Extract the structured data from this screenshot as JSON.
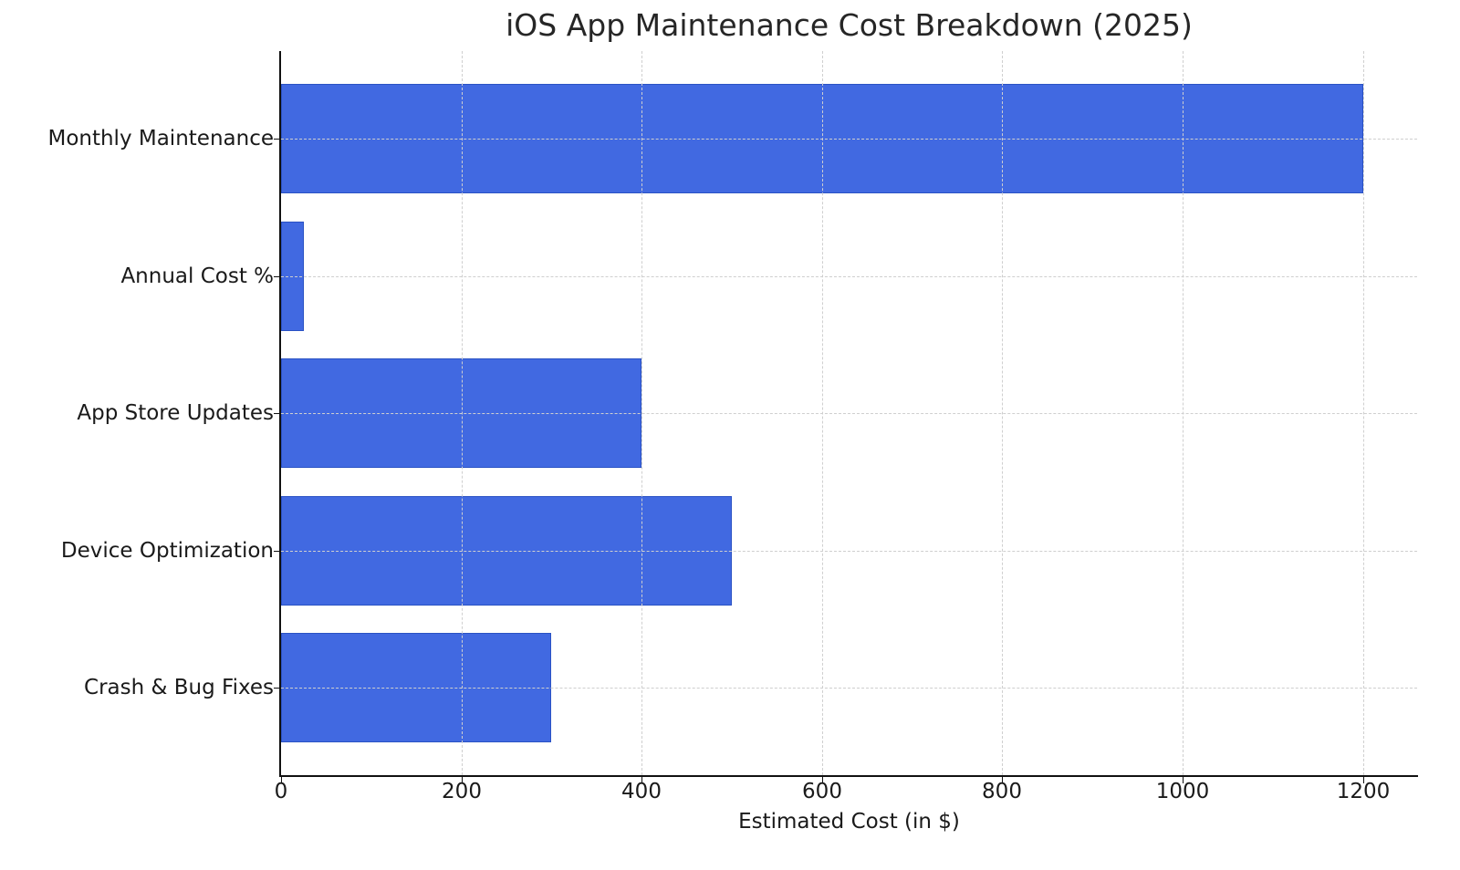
{
  "chart_data": {
    "type": "bar",
    "orientation": "horizontal",
    "title": "iOS App Maintenance Cost Breakdown (2025)",
    "xlabel": "Estimated Cost (in $)",
    "ylabel": "",
    "categories": [
      "Monthly Maintenance",
      "Annual Cost %",
      "App Store Updates",
      "Device Optimization",
      "Crash & Bug Fixes"
    ],
    "values": [
      1200,
      25,
      400,
      500,
      300
    ],
    "xlim": [
      0,
      1260
    ],
    "xticks": [
      0,
      200,
      400,
      600,
      800,
      1000,
      1200
    ],
    "xtick_labels": [
      "0",
      "200",
      "400",
      "600",
      "800",
      "1000",
      "1200"
    ],
    "grid": true,
    "grid_style": "dashed",
    "bar_color": "#4169e1",
    "legend": null
  }
}
